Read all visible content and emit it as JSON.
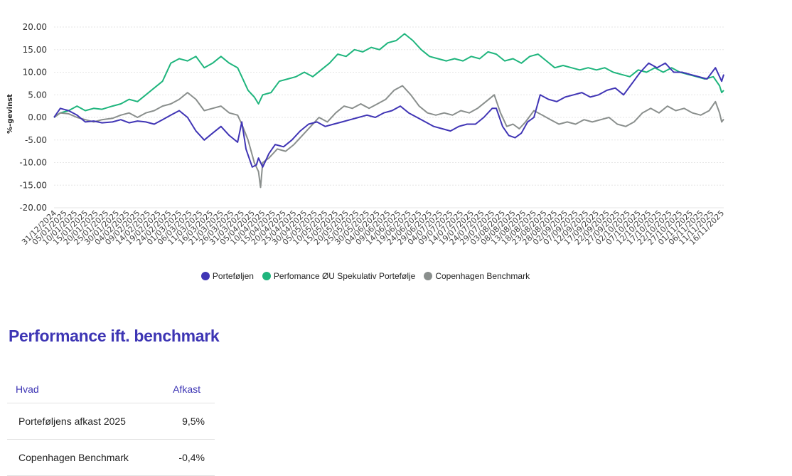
{
  "chart_data": {
    "type": "line",
    "ylabel": "%-gevinst",
    "ylim": [
      -20,
      20
    ],
    "yticks": [
      "20.00",
      "15.00",
      "10.00",
      "5.00",
      "0.00",
      "-5.00",
      "-10.00",
      "-15.00",
      "-20.00"
    ],
    "grid": true,
    "legend_position": "bottom",
    "x_tick_labels": [
      "31/12/2024",
      "05/01/2025",
      "10/01/2025",
      "15/01/2025",
      "20/01/2025",
      "25/01/2025",
      "30/01/2025",
      "04/02/2025",
      "09/02/2025",
      "14/02/2025",
      "19/02/2025",
      "24/02/2025",
      "01/03/2025",
      "06/03/2025",
      "11/03/2025",
      "16/03/2025",
      "21/03/2025",
      "26/03/2025",
      "31/03/2025",
      "05/04/2025",
      "10/04/2025",
      "15/04/2025",
      "20/04/2025",
      "25/04/2025",
      "30/04/2025",
      "05/05/2025",
      "10/05/2025",
      "15/05/2025",
      "20/05/2025",
      "25/05/2025",
      "30/05/2025",
      "04/06/2025",
      "09/06/2025",
      "14/06/2025",
      "19/06/2025",
      "24/06/2025",
      "29/06/2025",
      "04/07/2025",
      "09/07/2025",
      "14/07/2025",
      "19/07/2025",
      "24/07/2025",
      "29/07/2025",
      "03/08/2025",
      "08/08/2025",
      "13/08/2025",
      "18/08/2025",
      "23/08/2025",
      "28/08/2025",
      "02/09/2025",
      "07/09/2025",
      "12/09/2025",
      "17/09/2025",
      "22/09/2025",
      "27/09/2025",
      "02/10/2025",
      "07/10/2025",
      "12/10/2025",
      "17/10/2025",
      "22/10/2025",
      "27/10/2025",
      "01/11/2025",
      "06/11/2025",
      "11/11/2025",
      "16/11/2025"
    ],
    "x_range": [
      "31/12/2024",
      "16/11/2025"
    ],
    "series": [
      {
        "name": "Porteføljen",
        "color": "#4035b5",
        "points": [
          [
            "31/12/2024",
            0.0
          ],
          [
            "03/01/2025",
            2.0
          ],
          [
            "07/01/2025",
            1.5
          ],
          [
            "11/01/2025",
            0.5
          ],
          [
            "15/01/2025",
            -1.0
          ],
          [
            "19/01/2025",
            -0.8
          ],
          [
            "23/01/2025",
            -1.2
          ],
          [
            "28/01/2025",
            -1.0
          ],
          [
            "01/02/2025",
            -0.5
          ],
          [
            "05/02/2025",
            -1.2
          ],
          [
            "09/02/2025",
            -0.8
          ],
          [
            "13/02/2025",
            -1.0
          ],
          [
            "17/02/2025",
            -1.5
          ],
          [
            "21/02/2025",
            -0.5
          ],
          [
            "25/02/2025",
            0.5
          ],
          [
            "01/03/2025",
            1.5
          ],
          [
            "05/03/2025",
            0.0
          ],
          [
            "09/03/2025",
            -3.0
          ],
          [
            "13/03/2025",
            -5.0
          ],
          [
            "17/03/2025",
            -3.5
          ],
          [
            "21/03/2025",
            -2.0
          ],
          [
            "25/03/2025",
            -4.0
          ],
          [
            "29/03/2025",
            -5.5
          ],
          [
            "31/03/2025",
            -1.0
          ],
          [
            "02/04/2025",
            -7.0
          ],
          [
            "05/04/2025",
            -11.0
          ],
          [
            "07/04/2025",
            -10.5
          ],
          [
            "08/04/2025",
            -9.0
          ],
          [
            "10/04/2025",
            -11.0
          ],
          [
            "13/04/2025",
            -8.0
          ],
          [
            "16/04/2025",
            -6.0
          ],
          [
            "20/04/2025",
            -6.5
          ],
          [
            "24/04/2025",
            -5.0
          ],
          [
            "28/04/2025",
            -3.0
          ],
          [
            "02/05/2025",
            -1.5
          ],
          [
            "06/05/2025",
            -1.0
          ],
          [
            "10/05/2025",
            -2.0
          ],
          [
            "14/05/2025",
            -1.5
          ],
          [
            "18/05/2025",
            -1.0
          ],
          [
            "22/05/2025",
            -0.5
          ],
          [
            "26/05/2025",
            0.0
          ],
          [
            "30/05/2025",
            0.5
          ],
          [
            "03/06/2025",
            0.0
          ],
          [
            "07/06/2025",
            1.0
          ],
          [
            "11/06/2025",
            1.5
          ],
          [
            "15/06/2025",
            2.5
          ],
          [
            "19/06/2025",
            1.0
          ],
          [
            "23/06/2025",
            0.0
          ],
          [
            "27/06/2025",
            -1.0
          ],
          [
            "01/07/2025",
            -2.0
          ],
          [
            "05/07/2025",
            -2.5
          ],
          [
            "09/07/2025",
            -3.0
          ],
          [
            "13/07/2025",
            -2.0
          ],
          [
            "17/07/2025",
            -1.5
          ],
          [
            "21/07/2025",
            -1.5
          ],
          [
            "25/07/2025",
            0.0
          ],
          [
            "29/07/2025",
            2.0
          ],
          [
            "31/07/2025",
            2.0
          ],
          [
            "03/08/2025",
            -2.0
          ],
          [
            "06/08/2025",
            -4.0
          ],
          [
            "09/08/2025",
            -4.5
          ],
          [
            "12/08/2025",
            -3.5
          ],
          [
            "15/08/2025",
            -1.0
          ],
          [
            "18/08/2025",
            0.0
          ],
          [
            "21/08/2025",
            5.0
          ],
          [
            "25/08/2025",
            4.0
          ],
          [
            "29/08/2025",
            3.5
          ],
          [
            "02/09/2025",
            4.5
          ],
          [
            "06/09/2025",
            5.0
          ],
          [
            "10/09/2025",
            5.5
          ],
          [
            "14/09/2025",
            4.5
          ],
          [
            "18/09/2025",
            5.0
          ],
          [
            "22/09/2025",
            6.0
          ],
          [
            "26/09/2025",
            6.5
          ],
          [
            "30/09/2025",
            5.0
          ],
          [
            "04/10/2025",
            7.5
          ],
          [
            "08/10/2025",
            10.0
          ],
          [
            "12/10/2025",
            12.0
          ],
          [
            "16/10/2025",
            11.0
          ],
          [
            "20/10/2025",
            12.0
          ],
          [
            "24/10/2025",
            10.0
          ],
          [
            "28/10/2025",
            10.0
          ],
          [
            "01/11/2025",
            9.5
          ],
          [
            "05/11/2025",
            9.0
          ],
          [
            "09/11/2025",
            8.5
          ],
          [
            "13/11/2025",
            11.0
          ],
          [
            "16/11/2025",
            8.0
          ],
          [
            "17/11/2025",
            9.5
          ]
        ]
      },
      {
        "name": "Perfomance ØU Spekulativ Portefølje",
        "color": "#1fb57d",
        "points": [
          [
            "31/12/2024",
            0.0
          ],
          [
            "03/01/2025",
            1.0
          ],
          [
            "07/01/2025",
            1.5
          ],
          [
            "11/01/2025",
            2.5
          ],
          [
            "15/01/2025",
            1.5
          ],
          [
            "19/01/2025",
            2.0
          ],
          [
            "23/01/2025",
            1.8
          ],
          [
            "28/01/2025",
            2.5
          ],
          [
            "01/02/2025",
            3.0
          ],
          [
            "05/02/2025",
            4.0
          ],
          [
            "09/02/2025",
            3.5
          ],
          [
            "13/02/2025",
            5.0
          ],
          [
            "17/02/2025",
            6.5
          ],
          [
            "21/02/2025",
            8.0
          ],
          [
            "25/02/2025",
            12.0
          ],
          [
            "01/03/2025",
            13.0
          ],
          [
            "05/03/2025",
            12.5
          ],
          [
            "09/03/2025",
            13.5
          ],
          [
            "13/03/2025",
            11.0
          ],
          [
            "17/03/2025",
            12.0
          ],
          [
            "21/03/2025",
            13.5
          ],
          [
            "25/03/2025",
            12.0
          ],
          [
            "29/03/2025",
            11.0
          ],
          [
            "31/03/2025",
            9.0
          ],
          [
            "03/04/2025",
            6.0
          ],
          [
            "06/04/2025",
            4.5
          ],
          [
            "08/04/2025",
            3.0
          ],
          [
            "10/04/2025",
            5.0
          ],
          [
            "14/04/2025",
            5.5
          ],
          [
            "18/04/2025",
            8.0
          ],
          [
            "22/04/2025",
            8.5
          ],
          [
            "26/04/2025",
            9.0
          ],
          [
            "30/04/2025",
            10.0
          ],
          [
            "04/05/2025",
            9.0
          ],
          [
            "08/05/2025",
            10.5
          ],
          [
            "12/05/2025",
            12.0
          ],
          [
            "16/05/2025",
            14.0
          ],
          [
            "20/05/2025",
            13.5
          ],
          [
            "24/05/2025",
            15.0
          ],
          [
            "28/05/2025",
            14.5
          ],
          [
            "01/06/2025",
            15.5
          ],
          [
            "05/06/2025",
            15.0
          ],
          [
            "09/06/2025",
            16.5
          ],
          [
            "13/06/2025",
            17.0
          ],
          [
            "17/06/2025",
            18.5
          ],
          [
            "21/06/2025",
            17.0
          ],
          [
            "25/06/2025",
            15.0
          ],
          [
            "29/06/2025",
            13.5
          ],
          [
            "03/07/2025",
            13.0
          ],
          [
            "07/07/2025",
            12.5
          ],
          [
            "11/07/2025",
            13.0
          ],
          [
            "15/07/2025",
            12.5
          ],
          [
            "19/07/2025",
            13.5
          ],
          [
            "23/07/2025",
            13.0
          ],
          [
            "27/07/2025",
            14.5
          ],
          [
            "31/07/2025",
            14.0
          ],
          [
            "04/08/2025",
            12.5
          ],
          [
            "08/08/2025",
            13.0
          ],
          [
            "12/08/2025",
            12.0
          ],
          [
            "16/08/2025",
            13.5
          ],
          [
            "20/08/2025",
            14.0
          ],
          [
            "24/08/2025",
            12.5
          ],
          [
            "28/08/2025",
            11.0
          ],
          [
            "01/09/2025",
            11.5
          ],
          [
            "05/09/2025",
            11.0
          ],
          [
            "09/09/2025",
            10.5
          ],
          [
            "13/09/2025",
            11.0
          ],
          [
            "17/09/2025",
            10.5
          ],
          [
            "21/09/2025",
            11.0
          ],
          [
            "25/09/2025",
            10.0
          ],
          [
            "29/09/2025",
            9.5
          ],
          [
            "03/10/2025",
            9.0
          ],
          [
            "07/10/2025",
            10.5
          ],
          [
            "11/10/2025",
            10.0
          ],
          [
            "15/10/2025",
            11.0
          ],
          [
            "19/10/2025",
            10.0
          ],
          [
            "23/10/2025",
            11.0
          ],
          [
            "27/10/2025",
            10.0
          ],
          [
            "31/10/2025",
            9.5
          ],
          [
            "04/11/2025",
            9.0
          ],
          [
            "08/11/2025",
            8.5
          ],
          [
            "12/11/2025",
            9.0
          ],
          [
            "15/11/2025",
            7.0
          ],
          [
            "16/11/2025",
            5.5
          ],
          [
            "17/11/2025",
            6.0
          ]
        ]
      },
      {
        "name": "Copenhagen Benchmark",
        "color": "#8a8f8d",
        "points": [
          [
            "31/12/2024",
            0.0
          ],
          [
            "03/01/2025",
            1.0
          ],
          [
            "07/01/2025",
            0.8
          ],
          [
            "11/01/2025",
            0.0
          ],
          [
            "15/01/2025",
            -0.5
          ],
          [
            "19/01/2025",
            -1.0
          ],
          [
            "23/01/2025",
            -0.5
          ],
          [
            "28/01/2025",
            -0.2
          ],
          [
            "01/02/2025",
            0.5
          ],
          [
            "05/02/2025",
            1.0
          ],
          [
            "09/02/2025",
            0.0
          ],
          [
            "13/02/2025",
            1.0
          ],
          [
            "17/02/2025",
            1.5
          ],
          [
            "21/02/2025",
            2.5
          ],
          [
            "25/02/2025",
            3.0
          ],
          [
            "01/03/2025",
            4.0
          ],
          [
            "05/03/2025",
            5.5
          ],
          [
            "09/03/2025",
            4.0
          ],
          [
            "13/03/2025",
            1.5
          ],
          [
            "17/03/2025",
            2.0
          ],
          [
            "21/03/2025",
            2.5
          ],
          [
            "25/03/2025",
            1.0
          ],
          [
            "29/03/2025",
            0.5
          ],
          [
            "31/03/2025",
            -1.5
          ],
          [
            "03/04/2025",
            -5.0
          ],
          [
            "06/04/2025",
            -10.0
          ],
          [
            "08/04/2025",
            -12.0
          ],
          [
            "09/04/2025",
            -15.5
          ],
          [
            "10/04/2025",
            -10.0
          ],
          [
            "13/04/2025",
            -9.0
          ],
          [
            "17/04/2025",
            -7.0
          ],
          [
            "21/04/2025",
            -7.5
          ],
          [
            "25/04/2025",
            -6.0
          ],
          [
            "29/04/2025",
            -4.0
          ],
          [
            "03/05/2025",
            -2.0
          ],
          [
            "07/05/2025",
            0.0
          ],
          [
            "11/05/2025",
            -1.0
          ],
          [
            "15/05/2025",
            1.0
          ],
          [
            "19/05/2025",
            2.5
          ],
          [
            "23/05/2025",
            2.0
          ],
          [
            "27/05/2025",
            3.0
          ],
          [
            "31/05/2025",
            2.0
          ],
          [
            "04/06/2025",
            3.0
          ],
          [
            "08/06/2025",
            4.0
          ],
          [
            "12/06/2025",
            6.0
          ],
          [
            "16/06/2025",
            7.0
          ],
          [
            "20/06/2025",
            5.0
          ],
          [
            "24/06/2025",
            2.5
          ],
          [
            "28/06/2025",
            1.0
          ],
          [
            "02/07/2025",
            0.5
          ],
          [
            "06/07/2025",
            1.0
          ],
          [
            "10/07/2025",
            0.5
          ],
          [
            "14/07/2025",
            1.5
          ],
          [
            "18/07/2025",
            1.0
          ],
          [
            "22/07/2025",
            2.0
          ],
          [
            "26/07/2025",
            3.5
          ],
          [
            "30/07/2025",
            5.0
          ],
          [
            "02/08/2025",
            1.0
          ],
          [
            "05/08/2025",
            -2.0
          ],
          [
            "08/08/2025",
            -1.5
          ],
          [
            "11/08/2025",
            -2.5
          ],
          [
            "14/08/2025",
            -1.0
          ],
          [
            "18/08/2025",
            1.5
          ],
          [
            "22/08/2025",
            0.5
          ],
          [
            "26/08/2025",
            -0.5
          ],
          [
            "30/08/2025",
            -1.5
          ],
          [
            "03/09/2025",
            -1.0
          ],
          [
            "07/09/2025",
            -1.5
          ],
          [
            "11/09/2025",
            -0.5
          ],
          [
            "15/09/2025",
            -1.0
          ],
          [
            "19/09/2025",
            -0.5
          ],
          [
            "23/09/2025",
            0.0
          ],
          [
            "27/09/2025",
            -1.5
          ],
          [
            "01/10/2025",
            -2.0
          ],
          [
            "05/10/2025",
            -1.0
          ],
          [
            "09/10/2025",
            1.0
          ],
          [
            "13/10/2025",
            2.0
          ],
          [
            "17/10/2025",
            1.0
          ],
          [
            "21/10/2025",
            2.5
          ],
          [
            "25/10/2025",
            1.5
          ],
          [
            "29/10/2025",
            2.0
          ],
          [
            "02/11/2025",
            1.0
          ],
          [
            "06/11/2025",
            0.5
          ],
          [
            "10/11/2025",
            1.5
          ],
          [
            "13/11/2025",
            3.5
          ],
          [
            "15/11/2025",
            1.0
          ],
          [
            "16/11/2025",
            -1.0
          ],
          [
            "17/11/2025",
            -0.4
          ]
        ]
      }
    ]
  },
  "section": {
    "title": "Performance ift. benchmark"
  },
  "table": {
    "headers": [
      "Hvad",
      "Afkast"
    ],
    "rows": [
      [
        "Porteføljens afkast 2025",
        "9,5%"
      ],
      [
        "Copenhagen Benchmark",
        "-0,4%"
      ]
    ]
  }
}
